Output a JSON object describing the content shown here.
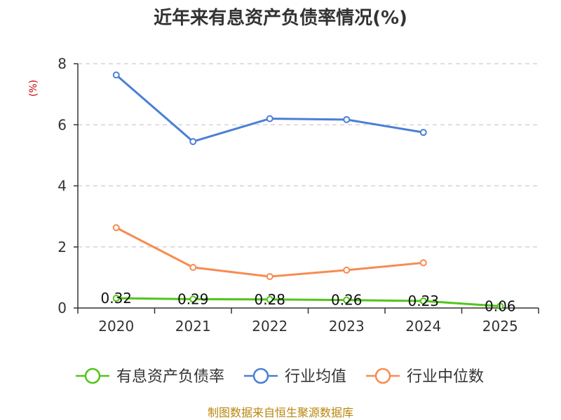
{
  "chart_data": {
    "type": "line",
    "title": "近年来有息资产负债率情况(%)",
    "ylabel": "(%)",
    "xlabel": "",
    "categories": [
      "2020",
      "2021",
      "2022",
      "2023",
      "2024",
      "2025"
    ],
    "ylim": [
      0,
      8
    ],
    "yticks": [
      0,
      2,
      4,
      6,
      8
    ],
    "grid": true,
    "legend_position": "bottom",
    "series": [
      {
        "name": "有息资产负债率",
        "color": "#52c41a",
        "values": [
          0.32,
          0.29,
          0.28,
          0.26,
          0.23,
          0.06
        ],
        "labels": [
          "0.32",
          "0.29",
          "0.28",
          "0.26",
          "0.23",
          "0.06"
        ]
      },
      {
        "name": "行业均值",
        "color": "#4a7fd6",
        "values": [
          7.63,
          5.45,
          6.2,
          6.17,
          5.75,
          null
        ]
      },
      {
        "name": "行业中位数",
        "color": "#f78b50",
        "values": [
          2.63,
          1.33,
          1.03,
          1.24,
          1.48,
          null
        ]
      }
    ],
    "source": "制图数据来自恒生聚源数据库"
  }
}
